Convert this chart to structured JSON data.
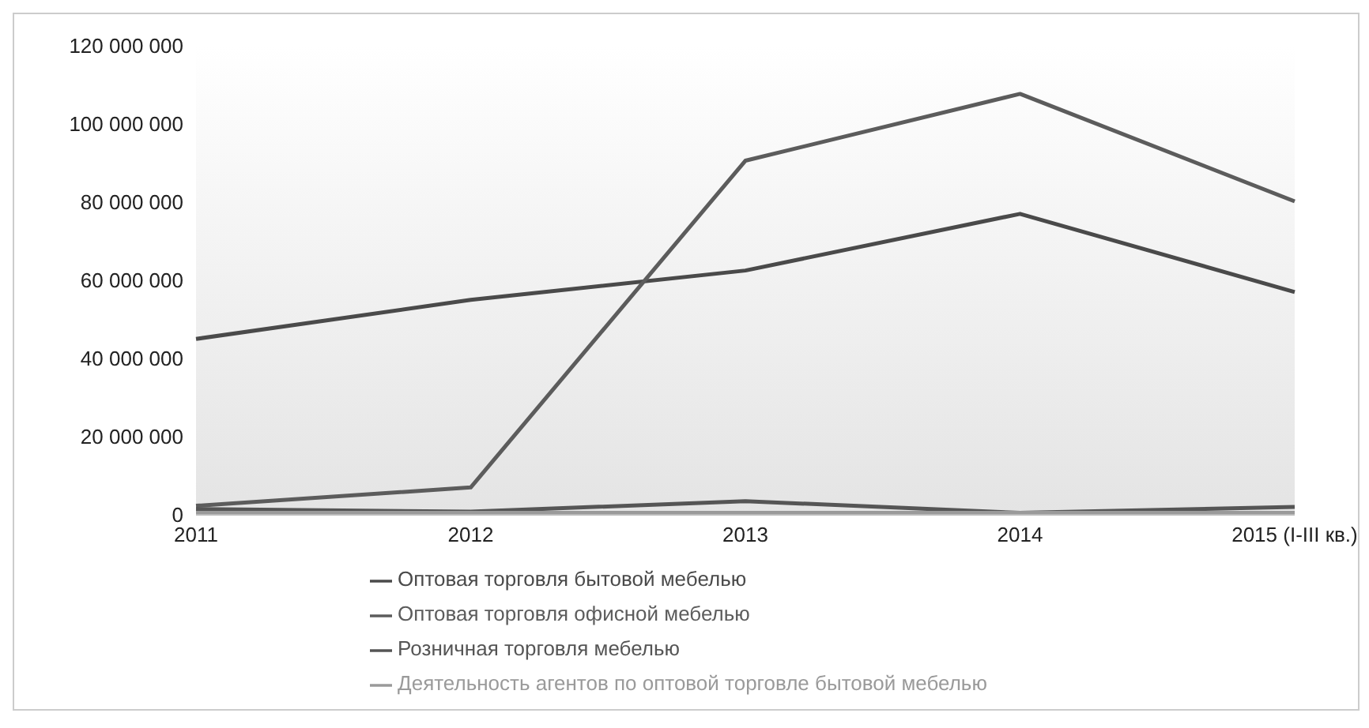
{
  "chart_data": {
    "type": "line",
    "categories": [
      "2011",
      "2012",
      "2013",
      "2014",
      "2015 (I-III кв.)"
    ],
    "series": [
      {
        "name": "Оптовая торговля бытовой мебелью",
        "color": "#4a4a4a",
        "values": [
          45000000,
          55000000,
          62500000,
          77000000,
          57000000
        ]
      },
      {
        "name": "Оптовая торговля офисной мебелью",
        "color": "#5c5c5c",
        "values": [
          2300000,
          7000000,
          90600000,
          107700000,
          80200000
        ]
      },
      {
        "name": "Розничная торговля мебелью",
        "color": "#555555",
        "values": [
          1500000,
          800000,
          3500000,
          500000,
          2000000
        ]
      },
      {
        "name": "Деятельность агентов по оптовой торговле бытовой мебелью",
        "color": "#9a9a9a",
        "values": [
          500000,
          500000,
          500000,
          500000,
          500000
        ]
      }
    ],
    "ylim": [
      0,
      120000000
    ],
    "yticks": [
      0,
      20000000,
      40000000,
      60000000,
      80000000,
      100000000,
      120000000
    ],
    "grid": false,
    "legend": "bottom",
    "marker": "none",
    "line_style": "solid"
  }
}
